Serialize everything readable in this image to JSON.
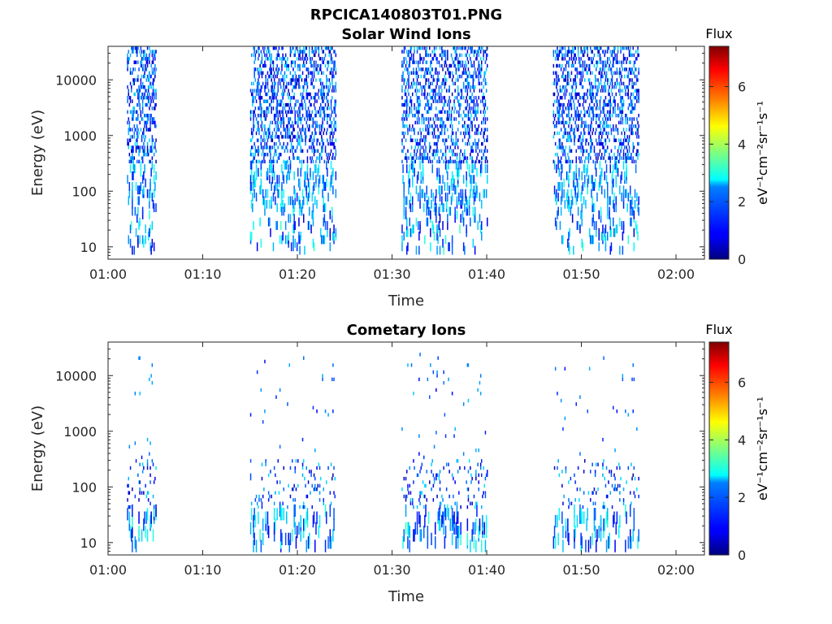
{
  "figure_title": "RPCICA140803T01.PNG",
  "colorbar": {
    "label": "Flux",
    "unit_label": "eV⁻¹cm⁻²sr⁻¹s⁻¹",
    "ticks": [
      "0",
      "2",
      "4",
      "6"
    ],
    "range": [
      0,
      7.4
    ],
    "colormap": "jet"
  },
  "chart_data": [
    {
      "type": "heatmap",
      "title": "Solar Wind Ions",
      "xlabel": "Time",
      "ylabel": "Energy (eV)",
      "y_scale": "log",
      "ylim": [
        6,
        40000
      ],
      "xlim": [
        "01:00",
        "02:03"
      ],
      "x_ticks": [
        "01:00",
        "01:10",
        "01:20",
        "01:30",
        "01:40",
        "01:50",
        "02:00"
      ],
      "y_ticks": [
        "10",
        "100",
        "1000",
        "10000"
      ],
      "grid": false,
      "activity_intervals": [
        {
          "start": "01:02",
          "end": "01:05"
        },
        {
          "start": "01:15",
          "end": "01:24"
        },
        {
          "start": "01:31",
          "end": "01:40"
        },
        {
          "start": "01:47",
          "end": "01:56"
        }
      ],
      "description_bands": [
        {
          "energy_min": 300,
          "energy_max": 40000,
          "flux_min": 0.3,
          "flux_max": 2.6
        },
        {
          "energy_min": 40,
          "energy_max": 300,
          "flux_min": 1.0,
          "flux_max": 3.0
        },
        {
          "energy_min": 8,
          "energy_max": 40,
          "flux_min": 0.5,
          "flux_max": 3.2
        }
      ]
    },
    {
      "type": "heatmap",
      "title": "Cometary Ions",
      "xlabel": "Time",
      "ylabel": "Energy (eV)",
      "y_scale": "log",
      "ylim": [
        6,
        40000
      ],
      "xlim": [
        "01:00",
        "02:03"
      ],
      "x_ticks": [
        "01:00",
        "01:10",
        "01:20",
        "01:30",
        "01:40",
        "01:50",
        "02:00"
      ],
      "y_ticks": [
        "10",
        "100",
        "1000",
        "10000"
      ],
      "grid": false,
      "activity_intervals": [
        {
          "start": "01:02",
          "end": "01:05"
        },
        {
          "start": "01:15",
          "end": "01:24"
        },
        {
          "start": "01:31",
          "end": "01:40"
        },
        {
          "start": "01:47",
          "end": "01:56"
        }
      ],
      "description_bands": [
        {
          "energy_min": 300,
          "energy_max": 30000,
          "flux_min": 0.8,
          "flux_max": 2.4
        },
        {
          "energy_min": 40,
          "energy_max": 300,
          "flux_min": 0.3,
          "flux_max": 2.6
        },
        {
          "energy_min": 8,
          "energy_max": 40,
          "flux_min": 0.6,
          "flux_max": 3.2
        }
      ]
    }
  ]
}
